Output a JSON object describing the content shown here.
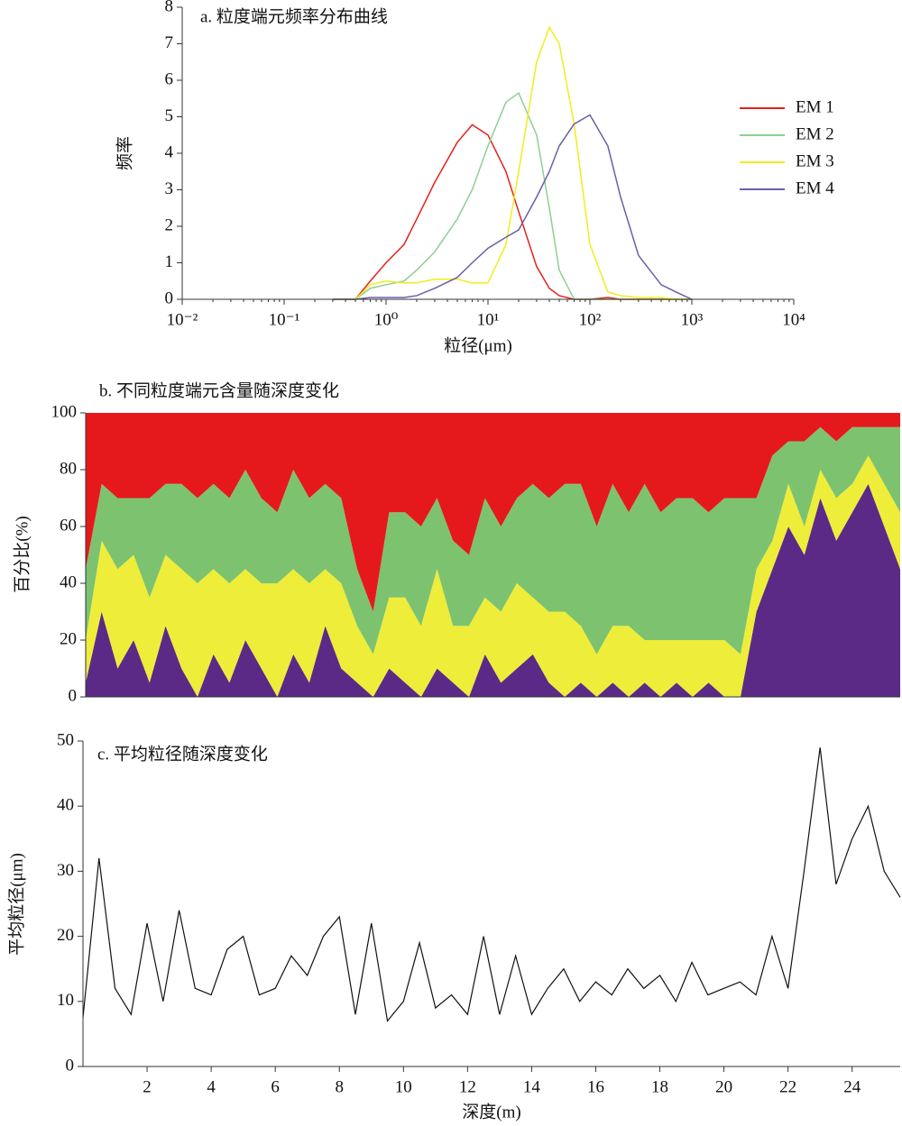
{
  "chart_data": [
    {
      "type": "line",
      "title": "a. 粒度端元频率分布曲线",
      "xlabel": "粒径(μm)",
      "ylabel": "频率",
      "xscale": "log",
      "legend": "upper right",
      "x": [
        0.3,
        0.5,
        0.7,
        1,
        1.5,
        2,
        3,
        5,
        7,
        10,
        15,
        20,
        30,
        40,
        50,
        70,
        100,
        150,
        200,
        300,
        500,
        700,
        1000
      ],
      "series": [
        {
          "name": "EM 1",
          "color": "#e3231b",
          "values": [
            0,
            0,
            0.5,
            1.0,
            1.5,
            2.2,
            3.2,
            4.3,
            4.78,
            4.5,
            3.5,
            2.4,
            0.9,
            0.3,
            0.1,
            0,
            0,
            0.05,
            0,
            0,
            0,
            0,
            0
          ]
        },
        {
          "name": "EM 2",
          "color": "#8fcf8f",
          "values": [
            0,
            0,
            0.3,
            0.4,
            0.5,
            0.8,
            1.3,
            2.2,
            3.0,
            4.2,
            5.4,
            5.65,
            4.5,
            2.5,
            0.8,
            0,
            0,
            0,
            0,
            0,
            0,
            0,
            0
          ]
        },
        {
          "name": "EM 3",
          "color": "#f2ec1e",
          "values": [
            0,
            0,
            0.4,
            0.5,
            0.45,
            0.45,
            0.55,
            0.55,
            0.45,
            0.45,
            1.5,
            3.5,
            6.5,
            7.45,
            7.0,
            4.8,
            1.5,
            0.2,
            0.1,
            0.05,
            0.05,
            0,
            0
          ]
        },
        {
          "name": "EM 4",
          "color": "#6a5fa8",
          "values": [
            0,
            0,
            0.05,
            0.05,
            0.05,
            0.1,
            0.3,
            0.6,
            1.0,
            1.4,
            1.7,
            1.9,
            2.8,
            3.5,
            4.2,
            4.8,
            5.05,
            4.2,
            2.8,
            1.2,
            0.4,
            0.2,
            0
          ]
        }
      ],
      "xlim": [
        0.01,
        10000
      ],
      "xticks": [
        {
          "value": 0.01,
          "label": "10⁻²"
        },
        {
          "value": 0.1,
          "label": "10⁻¹"
        },
        {
          "value": 1,
          "label": "10⁰"
        },
        {
          "value": 10,
          "label": "10¹"
        },
        {
          "value": 100,
          "label": "10²"
        },
        {
          "value": 1000,
          "label": "10³"
        },
        {
          "value": 10000,
          "label": "10⁴"
        }
      ],
      "ylim": [
        0,
        8
      ],
      "yticks": [
        0,
        1,
        2,
        3,
        4,
        5,
        6,
        7,
        8
      ]
    },
    {
      "type": "area",
      "stacked": true,
      "title": "b. 不同粒度端元含量随深度变化",
      "ylabel": "百分比(%)",
      "x": [
        0,
        0.5,
        1,
        1.5,
        2,
        2.5,
        3,
        3.5,
        4,
        4.5,
        5,
        5.5,
        6,
        6.5,
        7,
        7.5,
        8,
        8.5,
        9,
        9.5,
        10,
        10.5,
        11,
        11.5,
        12,
        12.5,
        13,
        13.5,
        14,
        14.5,
        15,
        15.5,
        16,
        16.5,
        17,
        17.5,
        18,
        18.5,
        19,
        19.5,
        20,
        20.5,
        21,
        21.5,
        22,
        22.5,
        23,
        23.5,
        24,
        24.5,
        25,
        25.5
      ],
      "series": [
        {
          "color": "#5b2a86",
          "values": [
            5,
            30,
            10,
            20,
            5,
            25,
            10,
            0,
            15,
            5,
            20,
            10,
            0,
            15,
            5,
            25,
            10,
            5,
            0,
            10,
            5,
            0,
            10,
            5,
            0,
            15,
            5,
            10,
            15,
            5,
            0,
            5,
            0,
            5,
            0,
            5,
            0,
            5,
            0,
            5,
            0,
            0,
            30,
            45,
            60,
            50,
            70,
            55,
            65,
            75,
            60,
            45
          ]
        },
        {
          "color": "#eded3a",
          "values": [
            15,
            25,
            35,
            30,
            30,
            25,
            35,
            40,
            30,
            35,
            25,
            30,
            40,
            30,
            35,
            20,
            30,
            20,
            15,
            25,
            30,
            25,
            35,
            20,
            25,
            20,
            25,
            30,
            20,
            25,
            30,
            20,
            15,
            20,
            25,
            15,
            20,
            15,
            20,
            15,
            20,
            15,
            15,
            10,
            15,
            10,
            10,
            15,
            10,
            10,
            15,
            20
          ]
        },
        {
          "color": "#7dc36f",
          "values": [
            25,
            20,
            25,
            20,
            35,
            25,
            30,
            30,
            30,
            30,
            35,
            30,
            25,
            35,
            30,
            30,
            30,
            20,
            15,
            30,
            30,
            35,
            25,
            30,
            25,
            35,
            30,
            30,
            40,
            40,
            45,
            50,
            45,
            50,
            40,
            55,
            45,
            50,
            50,
            45,
            50,
            55,
            25,
            30,
            15,
            30,
            15,
            20,
            20,
            10,
            20,
            30
          ]
        },
        {
          "color": "#e5191b",
          "values": [
            55,
            25,
            30,
            30,
            30,
            25,
            25,
            30,
            25,
            30,
            20,
            30,
            35,
            20,
            30,
            25,
            30,
            55,
            70,
            35,
            35,
            40,
            30,
            45,
            50,
            30,
            40,
            30,
            25,
            30,
            25,
            25,
            40,
            25,
            35,
            25,
            35,
            30,
            30,
            35,
            30,
            30,
            30,
            15,
            10,
            10,
            5,
            10,
            5,
            5,
            5,
            5
          ]
        }
      ],
      "xlim": [
        0,
        25.5
      ],
      "ylim": [
        0,
        100
      ],
      "yticks": [
        0,
        20,
        40,
        60,
        80,
        100
      ]
    },
    {
      "type": "line",
      "title": "c. 平均粒径随深度变化",
      "xlabel": "深度(m)",
      "ylabel": "平均粒径(μm)",
      "x": [
        0,
        0.5,
        1,
        1.5,
        2,
        2.5,
        3,
        3.5,
        4,
        4.5,
        5,
        5.5,
        6,
        6.5,
        7,
        7.5,
        8,
        8.5,
        9,
        9.5,
        10,
        10.5,
        11,
        11.5,
        12,
        12.5,
        13,
        13.5,
        14,
        14.5,
        15,
        15.5,
        16,
        16.5,
        17,
        17.5,
        18,
        18.5,
        19,
        19.5,
        20,
        20.5,
        21,
        21.5,
        22,
        22.5,
        23,
        23.5,
        24,
        24.5,
        25,
        25.5
      ],
      "series": [
        {
          "color": "#111111",
          "values": [
            7.5,
            32,
            12,
            8,
            22,
            10,
            24,
            12,
            11,
            18,
            20,
            11,
            12,
            17,
            14,
            20,
            23,
            8,
            22,
            7,
            10,
            19,
            9,
            11,
            8,
            20,
            8,
            17,
            8,
            12,
            15,
            10,
            13,
            11,
            15,
            12,
            14,
            10,
            16,
            11,
            12,
            13,
            11,
            20,
            12,
            30,
            49,
            28,
            35,
            40,
            30,
            26
          ]
        }
      ],
      "xlim": [
        0,
        25.5
      ],
      "xticks": [
        2,
        4,
        6,
        8,
        10,
        12,
        14,
        16,
        18,
        20,
        22,
        24
      ],
      "ylim": [
        0,
        50
      ],
      "yticks": [
        0,
        10,
        20,
        30,
        40,
        50
      ]
    }
  ]
}
